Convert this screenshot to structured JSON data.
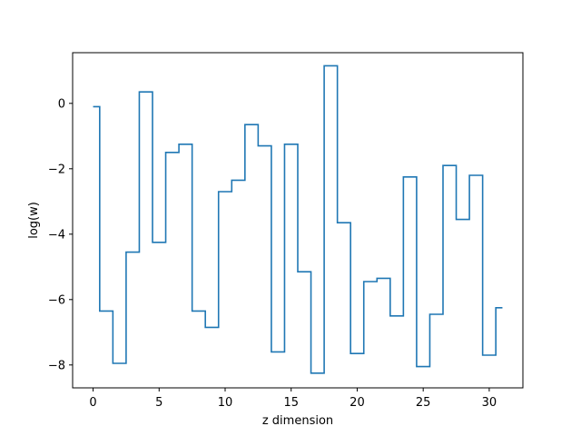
{
  "chart_data": {
    "type": "line",
    "drawstyle": "steps-mid",
    "xlabel": "z dimension",
    "ylabel": "log(w)",
    "xlim": [
      -1.55,
      32.55
    ],
    "ylim": [
      -8.7,
      1.55
    ],
    "xticks": [
      0,
      5,
      10,
      15,
      20,
      25,
      30
    ],
    "xtick_labels": [
      "0",
      "5",
      "10",
      "15",
      "20",
      "25",
      "30"
    ],
    "yticks": [
      0,
      -2,
      -4,
      -6,
      -8
    ],
    "ytick_labels": [
      "0",
      "−2",
      "−4",
      "−6",
      "−8"
    ],
    "grid": false,
    "legend": "none",
    "color": "#1f77b4",
    "series": [
      {
        "x": [
          0,
          1,
          2,
          3,
          4,
          5,
          6,
          7,
          8,
          9,
          10,
          11,
          12,
          13,
          14,
          15,
          16,
          17,
          18,
          19,
          20,
          21,
          22,
          23,
          24,
          25,
          26,
          27,
          28,
          29,
          30,
          31
        ],
        "values": [
          -0.1,
          -6.35,
          -7.95,
          -4.55,
          0.35,
          -4.25,
          -1.5,
          -1.25,
          -6.35,
          -6.85,
          -2.7,
          -2.35,
          -0.65,
          -1.3,
          -7.6,
          -1.25,
          -5.15,
          -8.25,
          1.15,
          -3.65,
          -7.65,
          -5.45,
          -5.35,
          -6.5,
          -2.25,
          -8.05,
          -6.45,
          -1.9,
          -3.55,
          -2.2,
          -7.7,
          -6.25
        ]
      }
    ]
  }
}
